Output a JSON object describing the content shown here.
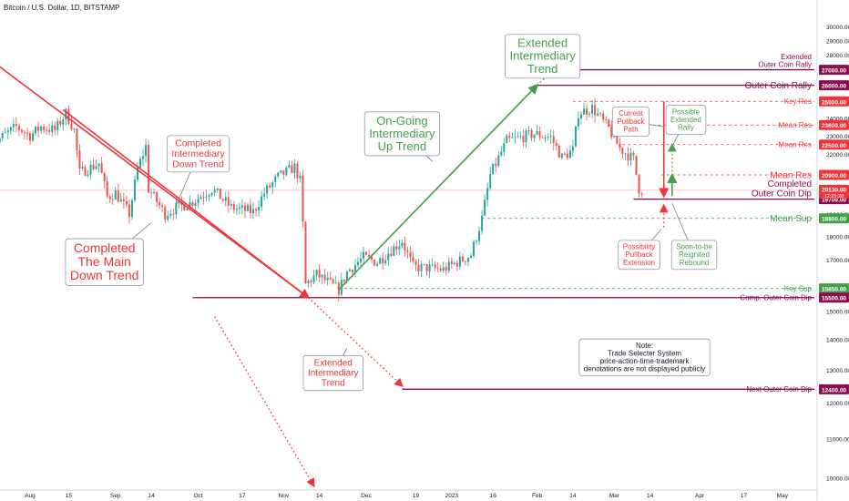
{
  "header": "Bitcoin / U.S. Dollar, 1D, BITSTAMP",
  "chart_data": {
    "type": "candlestick",
    "y_scale": "log",
    "ylim": [
      9700,
      32000
    ],
    "y_ticks": [
      10000,
      11000,
      12000,
      13000,
      14000,
      15000,
      16000,
      17000,
      18000,
      19000,
      20000,
      21000,
      22000,
      23000,
      24000,
      25000,
      26000,
      27000,
      28000,
      29000,
      30000
    ],
    "x_ticks": [
      {
        "date": "2022-08-01",
        "label": "Aug"
      },
      {
        "date": "2022-08-15",
        "label": "15"
      },
      {
        "date": "2022-09-01",
        "label": "Sep"
      },
      {
        "date": "2022-09-14",
        "label": "14"
      },
      {
        "date": "2022-10-01",
        "label": "Oct"
      },
      {
        "date": "2022-10-17",
        "label": "17"
      },
      {
        "date": "2022-11-01",
        "label": "Nov"
      },
      {
        "date": "2022-11-14",
        "label": "14"
      },
      {
        "date": "2022-12-01",
        "label": "Dec"
      },
      {
        "date": "2022-12-19",
        "label": "19"
      },
      {
        "date": "2023-01-01",
        "label": "2023"
      },
      {
        "date": "2023-01-16",
        "label": "16"
      },
      {
        "date": "2023-02-01",
        "label": "Feb"
      },
      {
        "date": "2023-02-14",
        "label": "14"
      },
      {
        "date": "2023-03-01",
        "label": "Mar"
      },
      {
        "date": "2023-03-14",
        "label": "14"
      },
      {
        "date": "2023-04-01",
        "label": "Apr"
      },
      {
        "date": "2023-04-17",
        "label": "17"
      },
      {
        "date": "2023-05-01",
        "label": "May"
      }
    ],
    "price_path": [
      [
        "2022-07-18",
        22500
      ],
      [
        "2022-07-27",
        23500
      ],
      [
        "2022-08-01",
        23000
      ],
      [
        "2022-08-05",
        23500
      ],
      [
        "2022-08-10",
        23300
      ],
      [
        "2022-08-14",
        24300
      ],
      [
        "2022-08-17",
        23300
      ],
      [
        "2022-08-19",
        21000
      ],
      [
        "2022-08-26",
        21500
      ],
      [
        "2022-08-29",
        19800
      ],
      [
        "2022-09-01",
        20000
      ],
      [
        "2022-09-06",
        19000
      ],
      [
        "2022-09-09",
        21200
      ],
      [
        "2022-09-12",
        22400
      ],
      [
        "2022-09-13",
        20200
      ],
      [
        "2022-09-19",
        19000
      ],
      [
        "2022-09-23",
        19300
      ],
      [
        "2022-09-28",
        19500
      ],
      [
        "2022-10-06",
        20200
      ],
      [
        "2022-10-13",
        19300
      ],
      [
        "2022-10-21",
        19100
      ],
      [
        "2022-10-25",
        20000
      ],
      [
        "2022-10-30",
        20800
      ],
      [
        "2022-11-05",
        21300
      ],
      [
        "2022-11-07",
        20600
      ],
      [
        "2022-11-08",
        18500
      ],
      [
        "2022-11-09",
        16000
      ],
      [
        "2022-11-13",
        16400
      ],
      [
        "2022-11-21",
        15800
      ],
      [
        "2022-11-24",
        16500
      ],
      [
        "2022-11-30",
        17100
      ],
      [
        "2022-12-05",
        16900
      ],
      [
        "2022-12-14",
        17800
      ],
      [
        "2022-12-18",
        16700
      ],
      [
        "2022-12-29",
        16600
      ],
      [
        "2023-01-08",
        17200
      ],
      [
        "2023-01-12",
        18800
      ],
      [
        "2023-01-15",
        20900
      ],
      [
        "2023-01-21",
        22700
      ],
      [
        "2023-01-31",
        23100
      ],
      [
        "2023-02-06",
        22900
      ],
      [
        "2023-02-10",
        21800
      ],
      [
        "2023-02-14",
        22200
      ],
      [
        "2023-02-16",
        24300
      ],
      [
        "2023-02-21",
        24600
      ],
      [
        "2023-02-27",
        23400
      ],
      [
        "2023-03-03",
        22300
      ],
      [
        "2023-03-08",
        21700
      ],
      [
        "2023-03-10",
        20200
      ],
      [
        "2023-03-11",
        20130
      ]
    ],
    "lines": [
      {
        "name": "main-downtrend",
        "color": "#f0353a",
        "dash": false,
        "arrow": true,
        "points": [
          [
            "2022-07-18",
            27600
          ],
          [
            "2022-11-10",
            15500
          ]
        ]
      },
      {
        "name": "main-downtrend-extension",
        "color": "#f0353a",
        "dash": true,
        "arrow": true,
        "points": [
          [
            "2022-10-07",
            14800
          ],
          [
            "2022-11-12",
            9800
          ]
        ]
      },
      {
        "name": "intermediary-downtrend",
        "color": "#f0353a",
        "dash": false,
        "arrow": false,
        "points": [
          [
            "2022-08-13",
            24500
          ],
          [
            "2022-11-10",
            15500
          ]
        ]
      },
      {
        "name": "intermediary-downtrend-extension",
        "color": "#f0353a",
        "dash": true,
        "arrow": true,
        "points": [
          [
            "2022-11-10",
            15500
          ],
          [
            "2022-12-14",
            12500
          ]
        ]
      },
      {
        "name": "intermediary-uptrend",
        "color": "#43a047",
        "dash": false,
        "arrow": true,
        "points": [
          [
            "2022-11-21",
            15800
          ],
          [
            "2023-02-01",
            26000
          ]
        ]
      },
      {
        "name": "extended-intermediary-trend",
        "color": "#43a047",
        "dash": true,
        "arrow": true,
        "points": [
          [
            "2023-02-01",
            26000
          ],
          [
            "2023-02-07",
            27000
          ]
        ]
      },
      {
        "name": "pullback-path",
        "color": "#f0353a",
        "dash": false,
        "arrow": true,
        "points": [
          [
            "2023-03-19",
            25000
          ],
          [
            "2023-03-19",
            19850
          ]
        ]
      },
      {
        "name": "pullback-extension",
        "color": "#f0353a",
        "dash": true,
        "arrow": true,
        "points": [
          [
            "2023-03-19",
            18400
          ],
          [
            "2023-03-19",
            19400
          ]
        ]
      },
      {
        "name": "extended-rally",
        "color": "#43a047",
        "dash": true,
        "arrow": true,
        "points": [
          [
            "2023-03-22",
            20250
          ],
          [
            "2023-03-22",
            22500
          ]
        ]
      },
      {
        "name": "reignited-rebound",
        "color": "#43a047",
        "dash": false,
        "arrow": true,
        "points": [
          [
            "2023-03-22",
            19850
          ],
          [
            "2023-03-22",
            20900
          ]
        ]
      }
    ],
    "levels": [
      {
        "label": "Extended\nOuter Coin Rally",
        "value": 27000,
        "value_label": "27000.00",
        "color": "#880e4f",
        "style": "solid",
        "from": "2023-01-31",
        "text_size": 8
      },
      {
        "label": "Outer Coin Rally",
        "value": 26000,
        "value_label": "26000.00",
        "color": "#880e4f",
        "style": "solid",
        "from": "2023-01-31",
        "text_size": 10
      },
      {
        "label": "Key Res",
        "value": 25000,
        "value_label": "25000.00",
        "color": "#f0353a",
        "style": "dashed",
        "from": "2023-02-14",
        "text_size": 8
      },
      {
        "label": "Mean Res",
        "value": 23600,
        "value_label": "23600.00",
        "color": "#f0353a",
        "style": "dashed",
        "from": "2023-02-27",
        "text_size": 8
      },
      {
        "label": "Mean Res",
        "value": 22500,
        "value_label": "22500.00",
        "color": "#f0353a",
        "style": "dashed",
        "from": "2023-03-04",
        "text_size": 8
      },
      {
        "label": "Mean Res",
        "value": 20900,
        "value_label": "20900.00",
        "color": "#f0353a",
        "style": "dashed",
        "from": "2023-03-18",
        "text_size": 10
      },
      {
        "label": "Completed\nOuter Coin Dip",
        "value": 19700,
        "value_label": "19700.00",
        "color": "#880e4f",
        "style": "solid",
        "from": "2023-03-08",
        "text_size": 10
      },
      {
        "label": "Mean Sup",
        "value": 18800,
        "value_label": "18800.00",
        "color": "#43a047",
        "style": "dashed",
        "from": "2023-01-12",
        "text_size": 10
      },
      {
        "label": "Key Sup",
        "value": 15850,
        "value_label": "15850.00",
        "color": "#43a047",
        "style": "dashed",
        "from": "2022-11-21",
        "text_size": 8
      },
      {
        "label": "Comp. Outer Coin Dip",
        "value": 15500,
        "value_label": "15500.00",
        "color": "#880e4f",
        "style": "solid",
        "from": "2022-09-29",
        "text_size": 8
      },
      {
        "label": "Next Outer Coin Dip",
        "value": 12400,
        "value_label": "12400.00",
        "color": "#880e4f",
        "style": "solid",
        "from": "2022-12-14",
        "text_size": 8
      }
    ],
    "current_price": {
      "value": 20130,
      "value_label": "20130.00",
      "time_label": "12:25:28",
      "color": "#f0353a"
    },
    "annotations": [
      {
        "text": "Extended\nIntermediary\nTrend",
        "color": "#43a047",
        "size": 13,
        "at": [
          "2023-02-03",
          27900
        ],
        "pointer": [
          "2023-02-07",
          27000
        ]
      },
      {
        "text": "On-Going\nIntermediary\nUp Trend",
        "color": "#43a047",
        "size": 13,
        "at": [
          "2022-12-14",
          23100
        ],
        "pointer": [
          "2022-12-25",
          21600
        ]
      },
      {
        "text": "Completed\nIntermediary\nDown Trend",
        "color": "#f0353a",
        "size": 10.5,
        "at": [
          "2022-10-01",
          22000
        ],
        "pointer": [
          "2022-09-23",
          19400
        ]
      },
      {
        "text": "Completed\nThe Main\nDown Trend",
        "color": "#f0353a",
        "size": 14,
        "at": [
          "2022-08-28",
          16900
        ],
        "pointer": [
          "2022-09-14",
          18600
        ]
      },
      {
        "text": "Extended\nIntermediary\nTrend",
        "color": "#f0353a",
        "size": 10,
        "at": [
          "2022-11-19",
          12900
        ],
        "pointer": [
          "2022-11-24",
          13700
        ]
      },
      {
        "text": "Current\nPullback\nPath",
        "color": "#f0353a",
        "size": 8,
        "at": [
          "2023-03-07",
          23800
        ],
        "pointer": [
          "2023-03-19",
          23500
        ]
      },
      {
        "text": "Possible\nExtended\nRally",
        "color": "#43a047",
        "size": 8,
        "at": [
          "2023-03-27",
          23900
        ],
        "pointer": [
          "2023-03-22",
          22400
        ]
      },
      {
        "text": "Possibility\nPullback\nExtension",
        "color": "#f0353a",
        "size": 8,
        "at": [
          "2023-03-10",
          17200
        ],
        "pointer": [
          "2023-03-18",
          18300
        ]
      },
      {
        "text": "Soon-to-be\nReignited\nRebound",
        "color": "#43a047",
        "size": 8,
        "at": [
          "2023-03-30",
          17200
        ],
        "pointer": [
          "2023-03-22",
          19500
        ]
      },
      {
        "text": "Note:\nTrade Selecter System\nprice-action-time-trademark\ndenotations are not displayed publicly",
        "color": "#131722",
        "size": 8,
        "at": [
          "2023-03-12",
          13400
        ],
        "pointer": null
      }
    ]
  }
}
